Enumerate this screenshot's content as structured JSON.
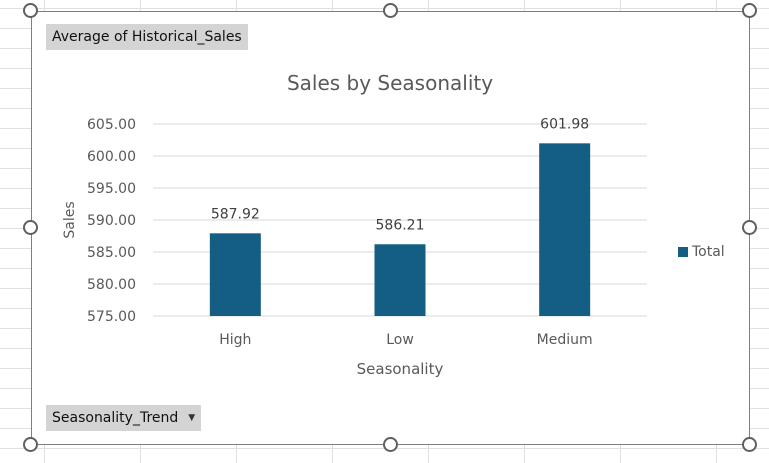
{
  "pivot": {
    "value_field_button": "Average of Historical_Sales",
    "axis_field_button": "Seasonality_Trend"
  },
  "colors": {
    "bar": "#155e83",
    "grid": "#d9d9d9",
    "text": "#595959"
  },
  "chart_data": {
    "type": "bar",
    "title": "Sales by Seasonality",
    "xlabel": "Seasonality",
    "ylabel": "Sales",
    "categories": [
      "High",
      "Low",
      "Medium"
    ],
    "series": [
      {
        "name": "Total",
        "values": [
          587.92,
          586.21,
          601.98
        ]
      }
    ],
    "data_labels": [
      "587.92",
      "586.21",
      "601.98"
    ],
    "ylim": [
      575,
      605
    ],
    "yticks": [
      "575.00",
      "580.00",
      "585.00",
      "590.00",
      "595.00",
      "600.00",
      "605.00"
    ],
    "grid": true,
    "legend": "right"
  }
}
